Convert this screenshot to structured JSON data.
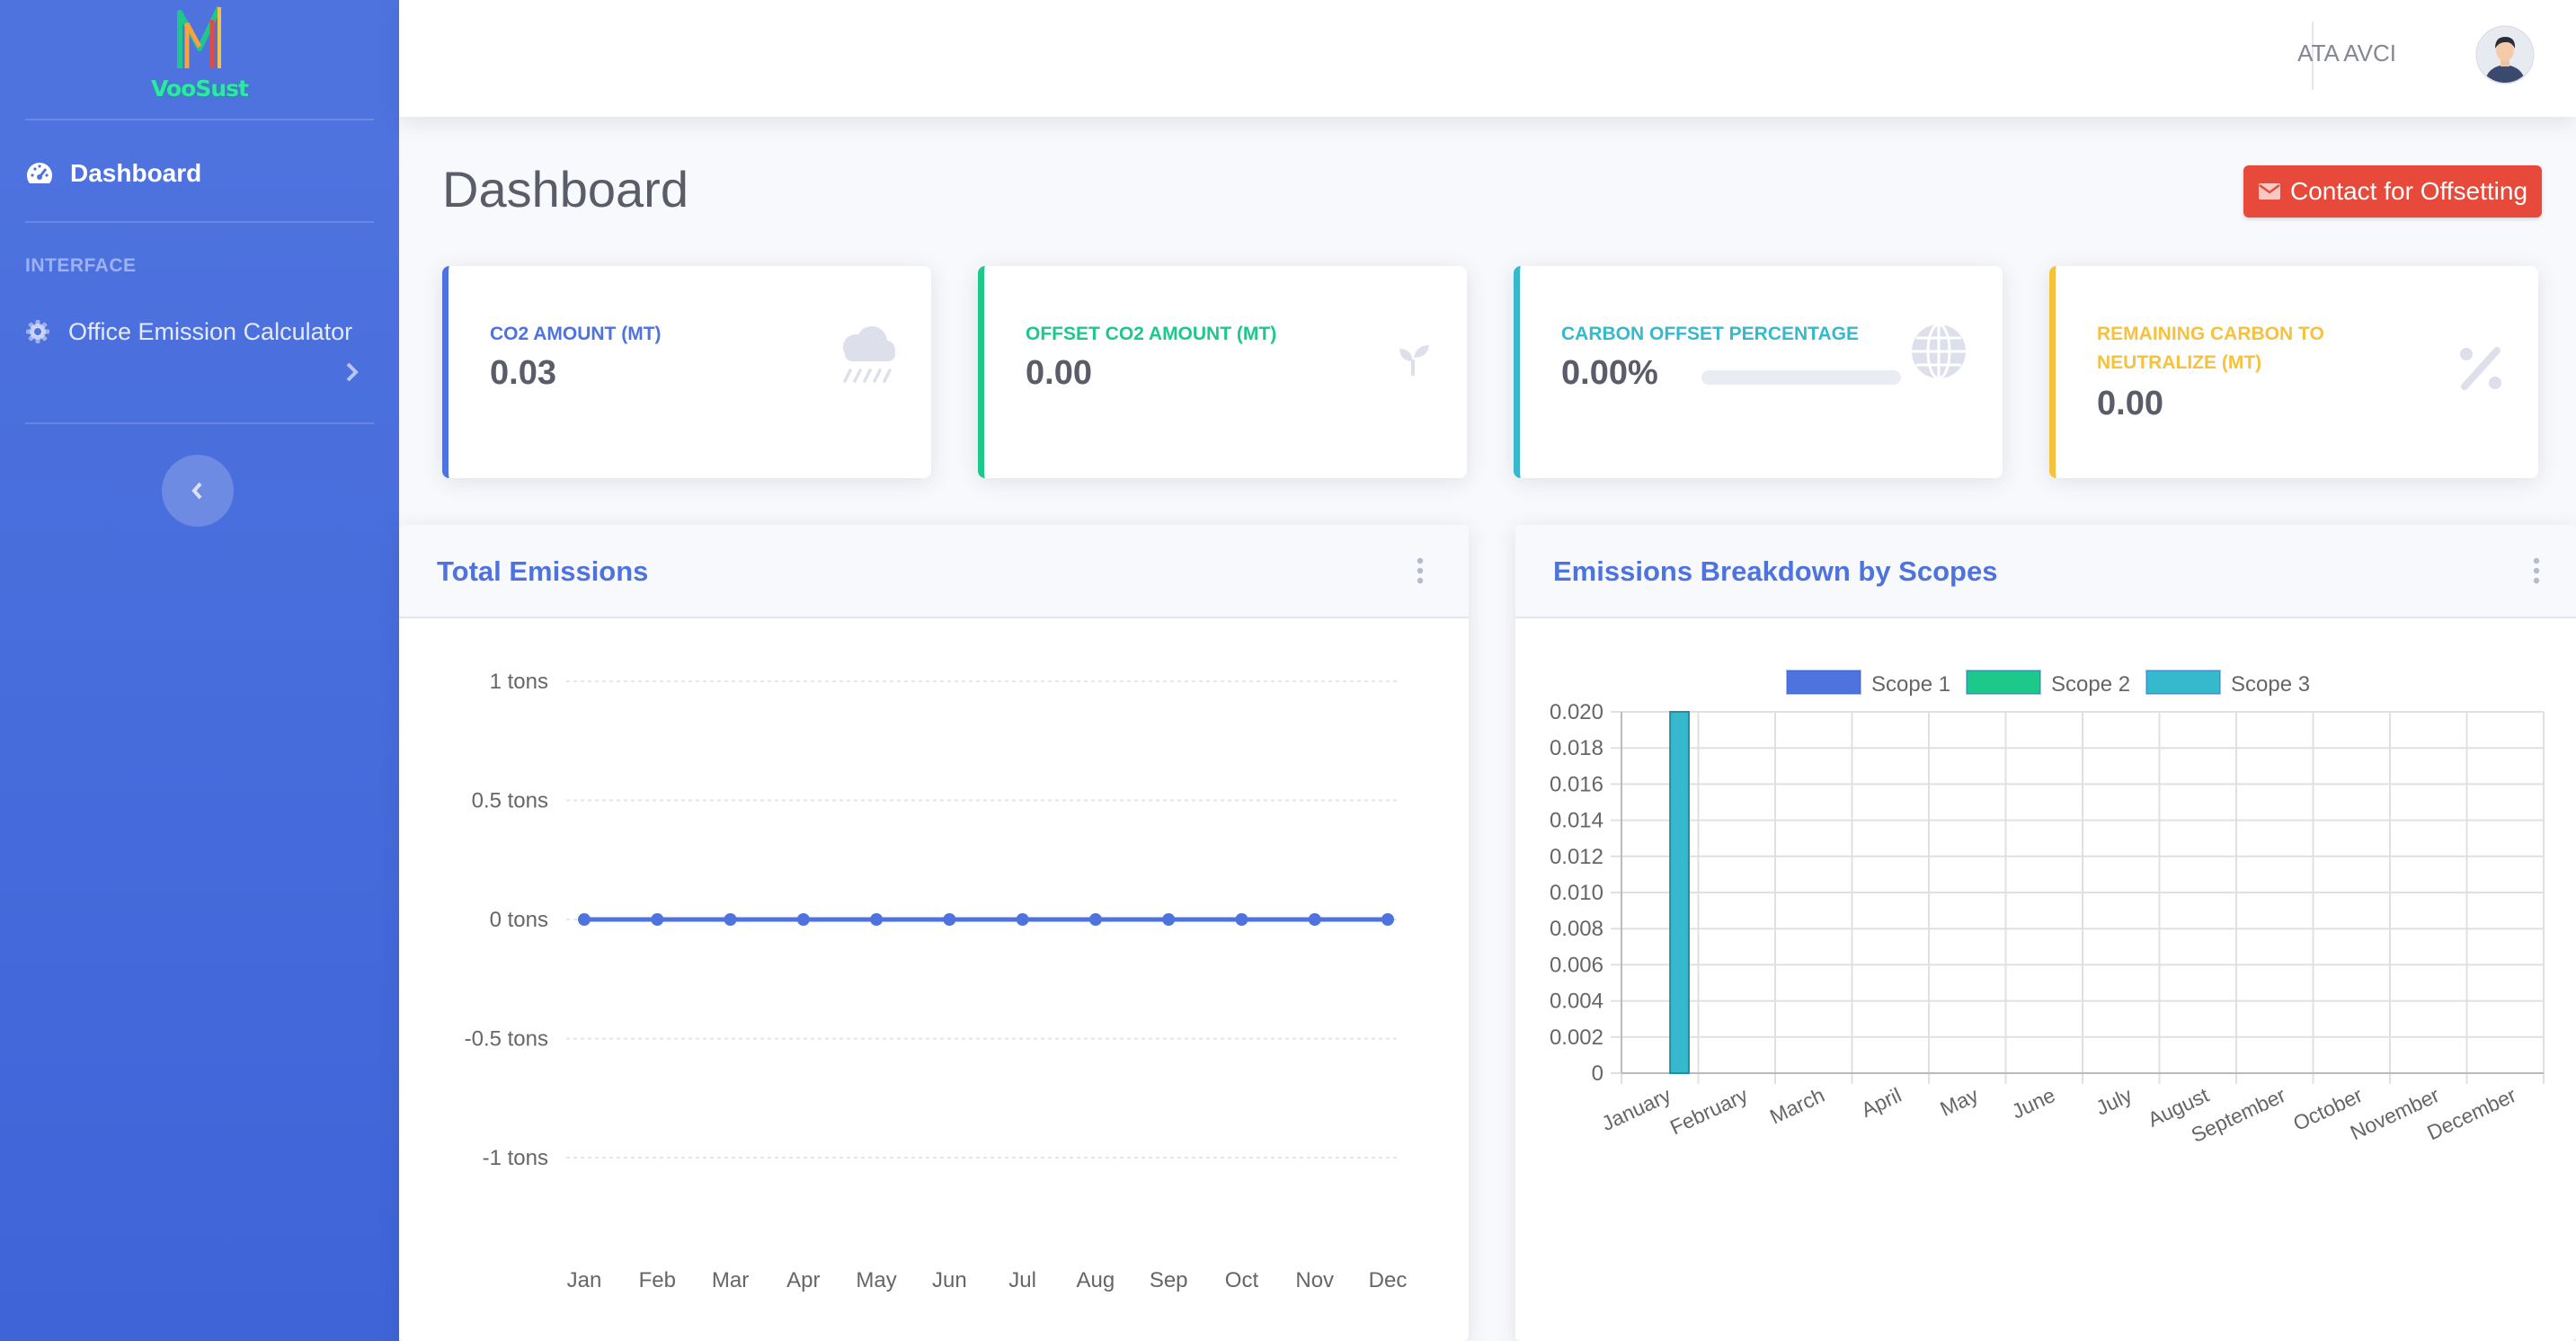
{
  "brand": {
    "name": "VooSust"
  },
  "sidebar": {
    "items": [
      {
        "label": "Dashboard",
        "icon": "tachometer-icon"
      }
    ],
    "heading": "INTERFACE",
    "calc_item": {
      "label": "Office Emission Calculator",
      "icon": "gear-icon"
    }
  },
  "topbar": {
    "user_name": "ATA AVCI"
  },
  "page": {
    "title": "Dashboard",
    "contact_label": "Contact for Offsetting"
  },
  "cards": [
    {
      "label": "CO2 AMOUNT (MT)",
      "value": "0.03",
      "color": "#4e73df",
      "icon": "cloud-rain-icon"
    },
    {
      "label": "OFFSET CO2 AMOUNT (MT)",
      "value": "0.00",
      "color": "#1cc88a",
      "icon": "seedling-icon"
    },
    {
      "label": "CARBON OFFSET PERCENTAGE",
      "value": "0.00%",
      "color": "#36b9cc",
      "icon": "globe-icon",
      "progress": 0
    },
    {
      "label": "REMAINING CARBON TO NEUTRALIZE (MT)",
      "value": "0.00",
      "color": "#f6c23e",
      "icon": "percent-icon"
    }
  ],
  "panels": {
    "total": {
      "title": "Total Emissions"
    },
    "scopes": {
      "title": "Emissions Breakdown by Scopes"
    }
  },
  "chart_data": [
    {
      "type": "line",
      "x": [
        "Jan",
        "Feb",
        "Mar",
        "Apr",
        "May",
        "Jun",
        "Jul",
        "Aug",
        "Sep",
        "Oct",
        "Nov",
        "Dec"
      ],
      "series": [
        {
          "values": [
            0,
            0,
            0,
            0,
            0,
            0,
            0,
            0,
            0,
            0,
            0,
            0
          ],
          "color": "#4e73df"
        }
      ],
      "yticks": [
        {
          "value": 1,
          "label": "1 tons"
        },
        {
          "value": 0.5,
          "label": "0.5 tons"
        },
        {
          "value": 0,
          "label": "0 tons"
        },
        {
          "value": -0.5,
          "label": "-0.5 tons"
        },
        {
          "value": -1,
          "label": "-1 tons"
        }
      ],
      "ylim": [
        -1,
        1
      ],
      "grid": true
    },
    {
      "type": "bar",
      "categories": [
        "January",
        "February",
        "March",
        "April",
        "May",
        "June",
        "July",
        "August",
        "September",
        "October",
        "November",
        "December"
      ],
      "series": [
        {
          "name": "Scope 1",
          "color": "#4e73df",
          "values": [
            0,
            0,
            0,
            0,
            0,
            0,
            0,
            0,
            0,
            0,
            0,
            0
          ]
        },
        {
          "name": "Scope 2",
          "color": "#1cc88a",
          "values": [
            0,
            0,
            0,
            0,
            0,
            0,
            0,
            0,
            0,
            0,
            0,
            0
          ]
        },
        {
          "name": "Scope 3",
          "color": "#36b9cc",
          "values": [
            0.02,
            0,
            0,
            0,
            0,
            0,
            0,
            0,
            0,
            0,
            0,
            0
          ]
        }
      ],
      "yticks": [
        "0.020",
        "0.018",
        "0.016",
        "0.014",
        "0.012",
        "0.010",
        "0.008",
        "0.006",
        "0.004",
        "0.002",
        "0"
      ],
      "ylim": [
        0,
        0.02
      ],
      "legend": "top",
      "grid": true
    }
  ]
}
